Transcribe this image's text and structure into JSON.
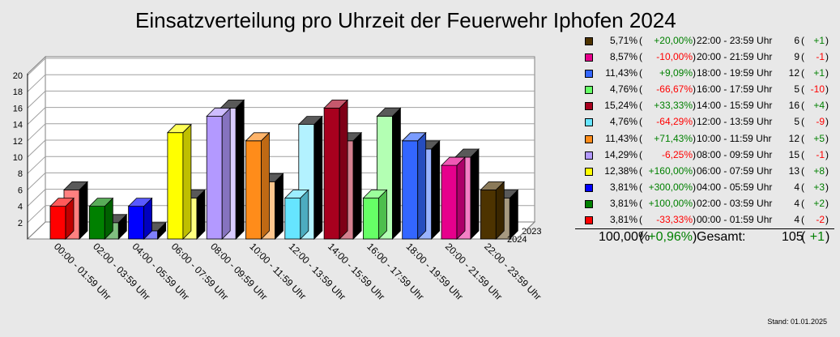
{
  "chart_data": {
    "type": "bar",
    "title": "Einsatzverteilung pro Uhrzeit der Feuerwehr Iphofen 2024",
    "categories": [
      "00:00 - 01:59 Uhr",
      "02:00 - 03:59 Uhr",
      "04:00 - 05:59 Uhr",
      "06:00 - 07:59 Uhr",
      "08:00 - 09:59 Uhr",
      "10:00 - 11:59 Uhr",
      "12:00 - 13:59 Uhr",
      "14:00 - 15:59 Uhr",
      "16:00 - 17:59 Uhr",
      "18:00 - 19:59 Uhr",
      "20:00 - 21:59 Uhr",
      "22:00 - 23:59 Uhr"
    ],
    "series": [
      {
        "name": "2024",
        "values": [
          4,
          4,
          4,
          13,
          15,
          12,
          5,
          16,
          5,
          12,
          9,
          6
        ]
      },
      {
        "name": "2023",
        "values": [
          6,
          2,
          1,
          5,
          16,
          7,
          14,
          12,
          15,
          11,
          10,
          5
        ]
      }
    ],
    "colors": [
      "#ff0000",
      "#008000",
      "#0000ff",
      "#ffff00",
      "#b399ff",
      "#ff8c1a",
      "#66e5ff",
      "#a8001e",
      "#66ff66",
      "#3366ff",
      "#e6008c",
      "#4d3300"
    ],
    "ylim": [
      0,
      20
    ],
    "yticks": [
      2,
      4,
      6,
      8,
      10,
      12,
      14,
      16,
      18,
      20
    ],
    "grid": true,
    "three_d": true
  },
  "legend": {
    "rows": [
      {
        "pct": "5,71%",
        "change": "+20,00%",
        "sign": "pos",
        "time": "22:00 - 23:59 Uhr",
        "count": "6",
        "diff": "+1",
        "color": "#4d3300"
      },
      {
        "pct": "8,57%",
        "change": "-10,00%",
        "sign": "neg",
        "time": "20:00 - 21:59 Uhr",
        "count": "9",
        "diff": "-1",
        "color": "#e6008c"
      },
      {
        "pct": "11,43%",
        "change": "+9,09%",
        "sign": "pos",
        "time": "18:00 - 19:59 Uhr",
        "count": "12",
        "diff": "+1",
        "color": "#3366ff"
      },
      {
        "pct": "4,76%",
        "change": "-66,67%",
        "sign": "neg",
        "time": "16:00 - 17:59 Uhr",
        "count": "5",
        "diff": "-10",
        "color": "#66ff66"
      },
      {
        "pct": "15,24%",
        "change": "+33,33%",
        "sign": "pos",
        "time": "14:00 - 15:59 Uhr",
        "count": "16",
        "diff": "+4",
        "color": "#a8001e"
      },
      {
        "pct": "4,76%",
        "change": "-64,29%",
        "sign": "neg",
        "time": "12:00 - 13:59 Uhr",
        "count": "5",
        "diff": "-9",
        "color": "#66e5ff"
      },
      {
        "pct": "11,43%",
        "change": "+71,43%",
        "sign": "pos",
        "time": "10:00 - 11:59 Uhr",
        "count": "12",
        "diff": "+5",
        "color": "#ff8c1a"
      },
      {
        "pct": "14,29%",
        "change": "-6,25%",
        "sign": "neg",
        "time": "08:00 - 09:59 Uhr",
        "count": "15",
        "diff": "-1",
        "color": "#b399ff"
      },
      {
        "pct": "12,38%",
        "change": "+160,00%",
        "sign": "pos",
        "time": "06:00 - 07:59 Uhr",
        "count": "13",
        "diff": "+8",
        "color": "#ffff00"
      },
      {
        "pct": "3,81%",
        "change": "+300,00%",
        "sign": "pos",
        "time": "04:00 - 05:59 Uhr",
        "count": "4",
        "diff": "+3",
        "color": "#0000ff"
      },
      {
        "pct": "3,81%",
        "change": "+100,00%",
        "sign": "pos",
        "time": "02:00 - 03:59 Uhr",
        "count": "4",
        "diff": "+2",
        "color": "#008000"
      },
      {
        "pct": "3,81%",
        "change": "-33,33%",
        "sign": "neg",
        "time": "00:00 - 01:59 Uhr",
        "count": "4",
        "diff": "-2",
        "color": "#ff0000"
      }
    ],
    "total": {
      "pct": "100,00%",
      "change": "+0,96%",
      "sign": "pos",
      "label": "Gesamt:",
      "count": "105",
      "diff": "+1"
    }
  },
  "depth_labels": {
    "back": "2023",
    "front": "2024"
  },
  "footer": {
    "stand": "Stand: 01.01.2025"
  }
}
